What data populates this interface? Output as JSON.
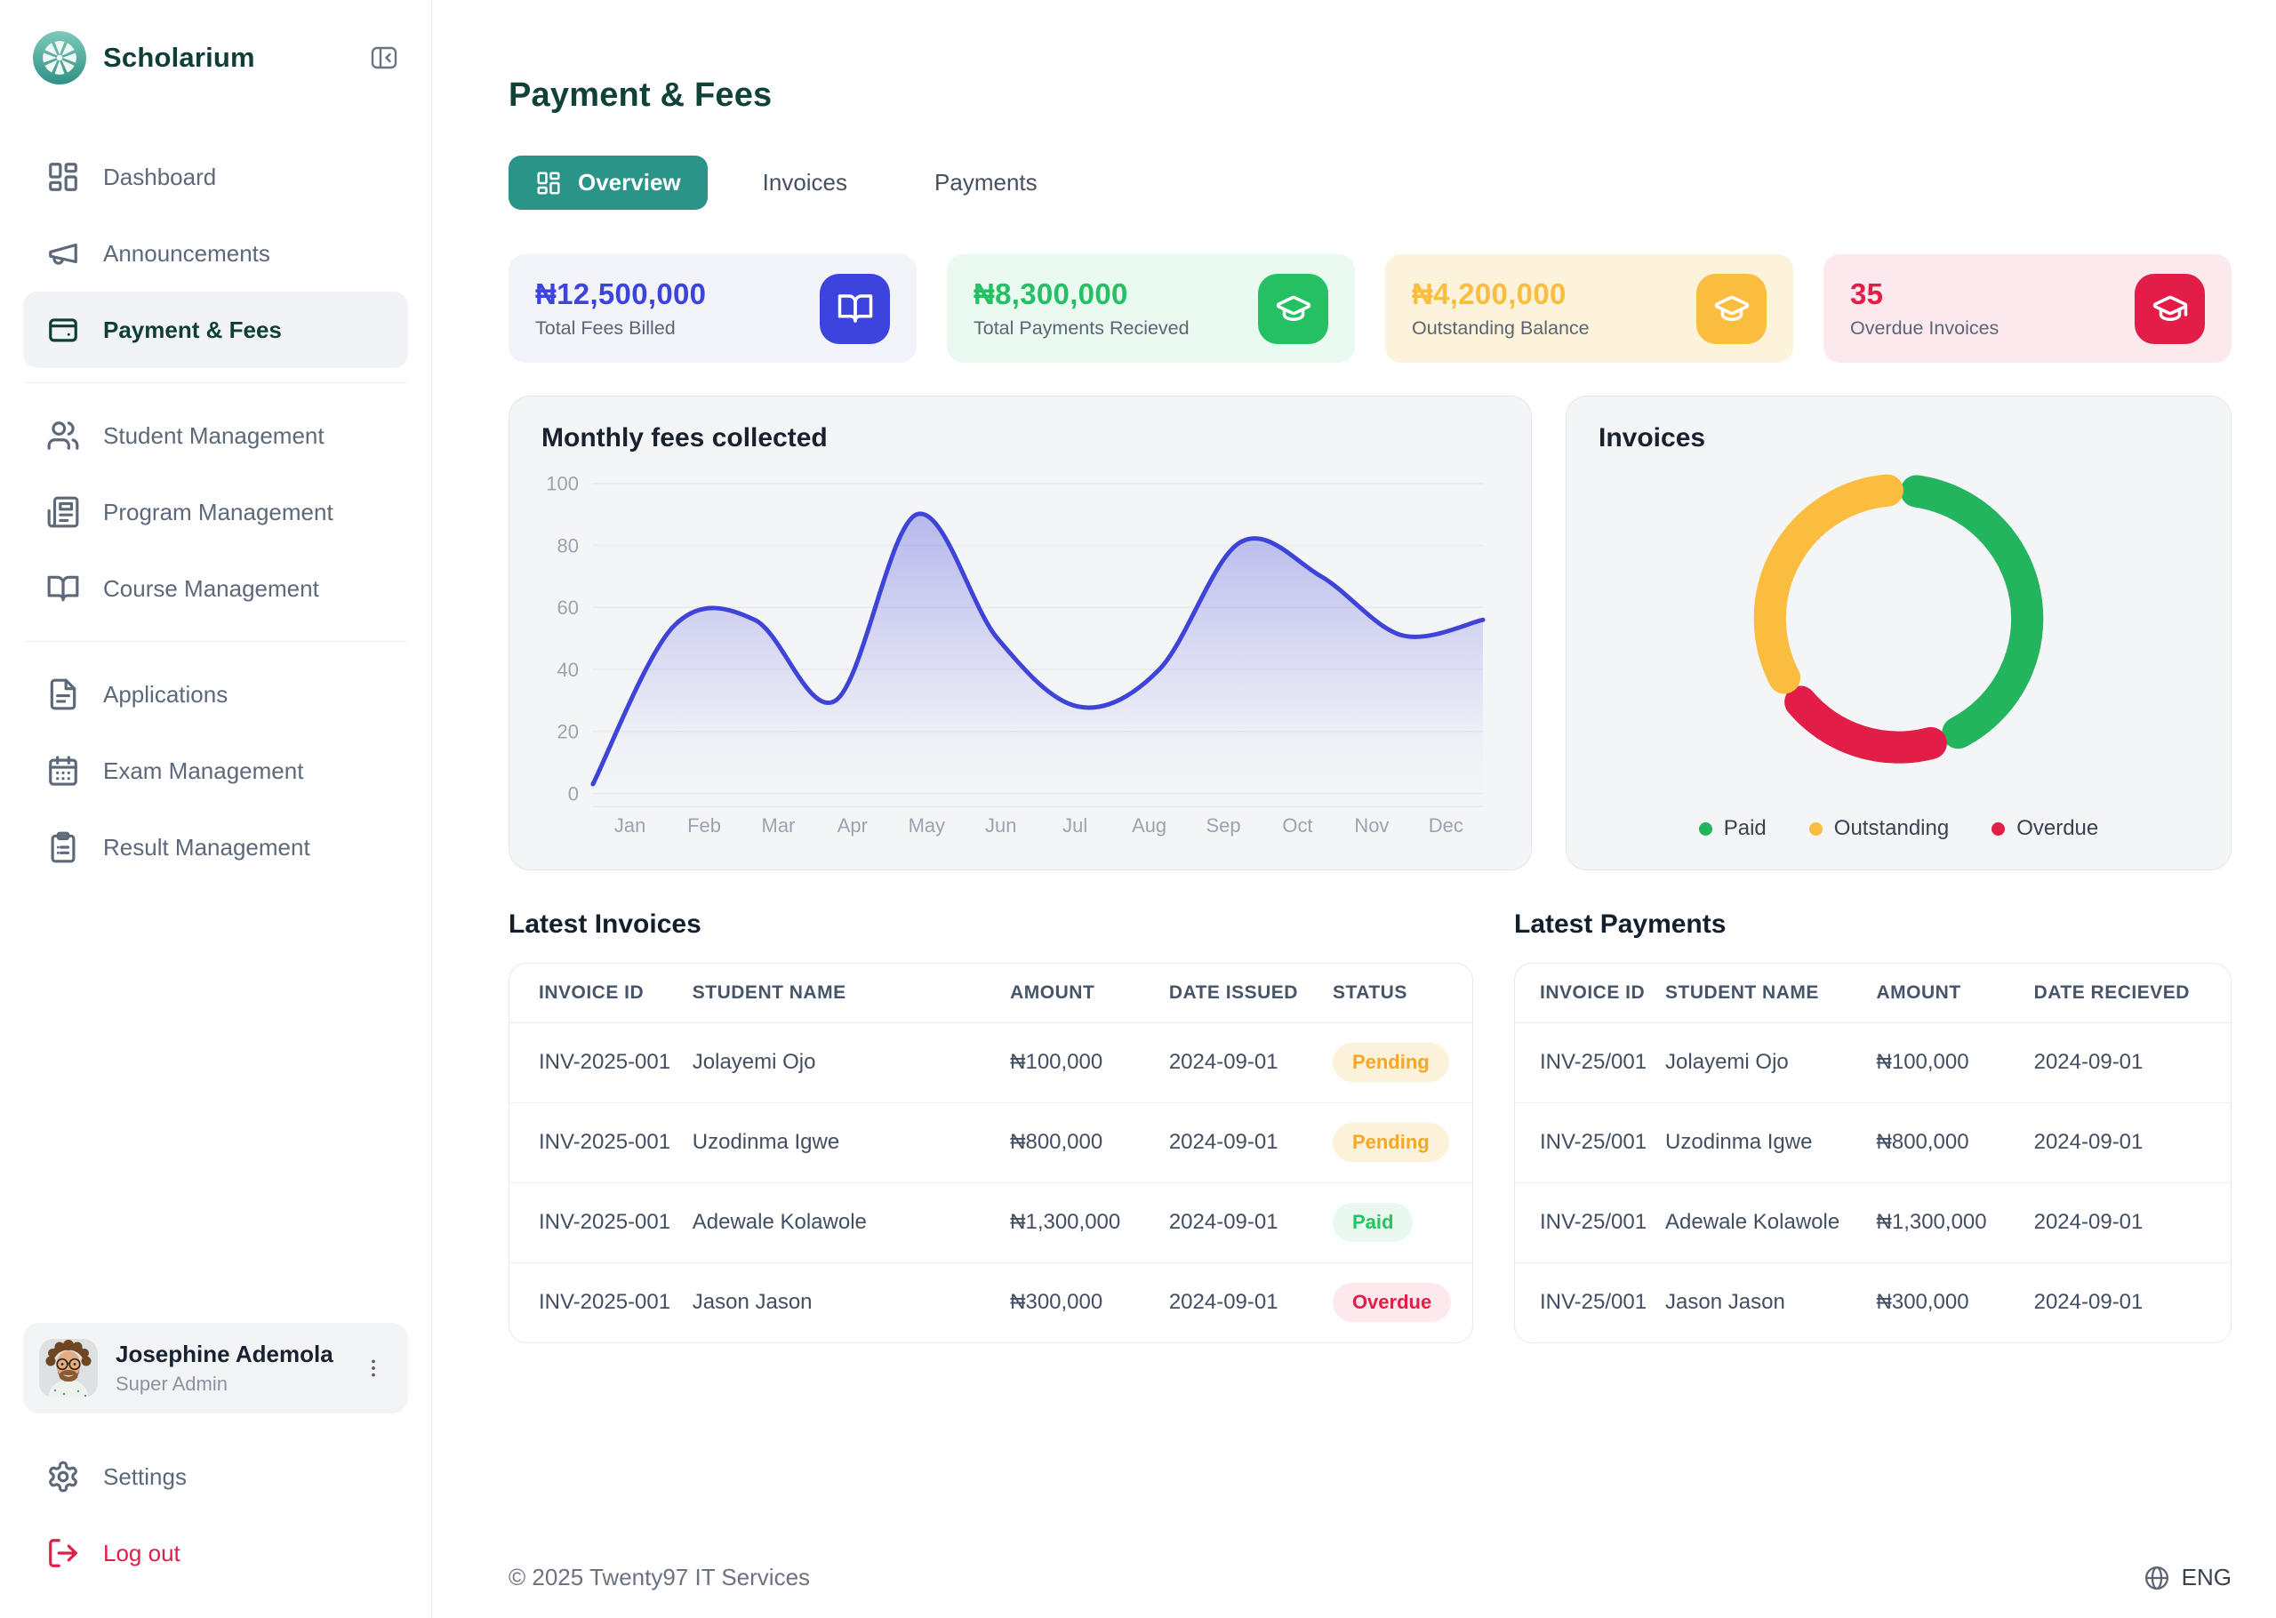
{
  "brand": {
    "name": "Scholarium"
  },
  "icons": {
    "logo": "teal-pinwheel-flower",
    "collapse": "panel-left-collapse",
    "dashboard": "layout-grid",
    "announcements": "megaphone",
    "payment_fees": "wallet-card",
    "student_management": "users",
    "program_management": "newspaper",
    "course_management": "book-open",
    "applications": "file-text",
    "exam_management": "calendar",
    "result_management": "clipboard-list",
    "settings": "gear",
    "logout": "log-out-arrow",
    "user_menu": "kebab-vertical",
    "stat1": "book-open",
    "stat2": "graduation-cap",
    "stat3": "graduation-cap",
    "stat4": "graduation-cap",
    "language": "globe"
  },
  "sidebar": {
    "items": [
      {
        "label": "Dashboard",
        "active": false
      },
      {
        "label": "Announcements",
        "active": false
      },
      {
        "label": "Payment & Fees",
        "active": true
      },
      {
        "label": "Student Management",
        "active": false
      },
      {
        "label": "Program Management",
        "active": false
      },
      {
        "label": "Course Management",
        "active": false
      },
      {
        "label": "Applications",
        "active": false
      },
      {
        "label": "Exam Management",
        "active": false
      },
      {
        "label": "Result Management",
        "active": false
      }
    ],
    "user": {
      "name": "Josephine Ademola",
      "role": "Super Admin"
    },
    "settings_label": "Settings",
    "logout_label": "Log out"
  },
  "header": {
    "title": "Payment & Fees",
    "tabs": [
      {
        "label": "Overview",
        "active": true
      },
      {
        "label": "Invoices",
        "active": false
      },
      {
        "label": "Payments",
        "active": false
      }
    ]
  },
  "stats": [
    {
      "value": "₦12,500,000",
      "label": "Total Fees Billed",
      "accent": "#3c44dd",
      "bg": "#f3f4f9"
    },
    {
      "value": "₦8,300,000",
      "label": "Total Payments Recieved",
      "accent": "#25c063",
      "bg": "#eafaf0"
    },
    {
      "value": "₦4,200,000",
      "label": "Outstanding Balance",
      "accent": "#fbbd3f",
      "bg": "#fdf3da"
    },
    {
      "value": "35",
      "label": "Overdue Invoices",
      "accent": "#e11d48",
      "bg": "#fce9ee"
    }
  ],
  "chart_data": [
    {
      "type": "line",
      "title": "Monthly fees collected",
      "x": [
        "Jan",
        "Feb",
        "Mar",
        "Apr",
        "May",
        "Jun",
        "Jul",
        "Aug",
        "Sep",
        "Oct",
        "Nov",
        "Dec"
      ],
      "values": [
        3,
        54,
        56,
        30,
        90,
        50,
        28,
        40,
        81,
        70,
        51,
        56
      ],
      "ylim": [
        0,
        100
      ],
      "yticks": [
        0,
        20,
        40,
        60,
        80,
        100
      ],
      "grid": true,
      "line_color": "#3f44d8",
      "xlabel": "",
      "ylabel": ""
    },
    {
      "type": "donut",
      "title": "Invoices",
      "segments": [
        {
          "label": "Paid",
          "value": 45,
          "color": "#22b55e"
        },
        {
          "label": "Outstanding",
          "value": 35,
          "color": "#fbbd3f"
        },
        {
          "label": "Overdue",
          "value": 20,
          "color": "#e11d48"
        }
      ],
      "draw_order": [
        0,
        2,
        1
      ],
      "legend_position": "bottom"
    }
  ],
  "tables": {
    "invoices": {
      "title": "Latest Invoices",
      "columns": [
        "INVOICE ID",
        "STUDENT NAME",
        "AMOUNT",
        "DATE ISSUED",
        "STATUS"
      ],
      "rows": [
        {
          "invoice_id": "INV-2025-001",
          "student": "Jolayemi Ojo",
          "amount": "₦100,000",
          "date": "2024-09-01",
          "status": "Pending"
        },
        {
          "invoice_id": "INV-2025-001",
          "student": "Uzodinma Igwe",
          "amount": "₦800,000",
          "date": "2024-09-01",
          "status": "Pending"
        },
        {
          "invoice_id": "INV-2025-001",
          "student": "Adewale Kolawole",
          "amount": "₦1,300,000",
          "date": "2024-09-01",
          "status": "Paid"
        },
        {
          "invoice_id": "INV-2025-001",
          "student": "Jason Jason",
          "amount": "₦300,000",
          "date": "2024-09-01",
          "status": "Overdue"
        }
      ]
    },
    "payments": {
      "title": "Latest Payments",
      "columns": [
        "INVOICE ID",
        "STUDENT NAME",
        "AMOUNT",
        "DATE RECIEVED"
      ],
      "rows": [
        {
          "invoice_id": "INV-25/001",
          "student": "Jolayemi Ojo",
          "amount": "₦100,000",
          "date": "2024-09-01"
        },
        {
          "invoice_id": "INV-25/001",
          "student": "Uzodinma Igwe",
          "amount": "₦800,000",
          "date": "2024-09-01"
        },
        {
          "invoice_id": "INV-25/001",
          "student": "Adewale Kolawole",
          "amount": "₦1,300,000",
          "date": "2024-09-01"
        },
        {
          "invoice_id": "INV-25/001",
          "student": "Jason Jason",
          "amount": "₦300,000",
          "date": "2024-09-01"
        }
      ]
    }
  },
  "status_styles": {
    "Pending": {
      "color": "#f5a623",
      "bg": "#fcf2d9"
    },
    "Paid": {
      "color": "#22c55e",
      "bg": "#e9f9ef"
    },
    "Overdue": {
      "color": "#e11d48",
      "bg": "#fde9ed"
    }
  },
  "footer": {
    "copyright": "© 2025 Twenty97 IT Services",
    "language": "ENG"
  }
}
